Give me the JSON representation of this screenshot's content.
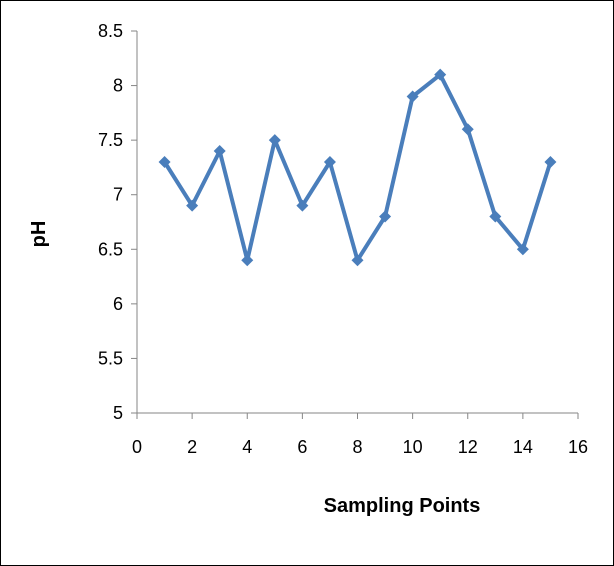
{
  "chart_data": {
    "type": "line",
    "title": "",
    "xlabel": "Sampling Points",
    "ylabel": "pH",
    "xlim": [
      0,
      16
    ],
    "ylim": [
      5,
      8.5
    ],
    "x_ticks": [
      "0",
      "2",
      "4",
      "6",
      "8",
      "10",
      "12",
      "14",
      "16"
    ],
    "y_ticks": [
      "5",
      "5.5",
      "6",
      "6.5",
      "7",
      "7.5",
      "8",
      "8.5"
    ],
    "grid": false,
    "legend": "none",
    "series": [
      {
        "color": "#4a7ebb",
        "marker": "diamond",
        "x": [
          1,
          2,
          3,
          4,
          5,
          6,
          7,
          8,
          9,
          10,
          11,
          12,
          13,
          14,
          15
        ],
        "y": [
          7.3,
          6.9,
          7.4,
          6.4,
          7.5,
          6.9,
          7.3,
          6.4,
          6.8,
          7.9,
          8.1,
          7.6,
          6.8,
          6.5,
          7.3
        ]
      }
    ]
  }
}
